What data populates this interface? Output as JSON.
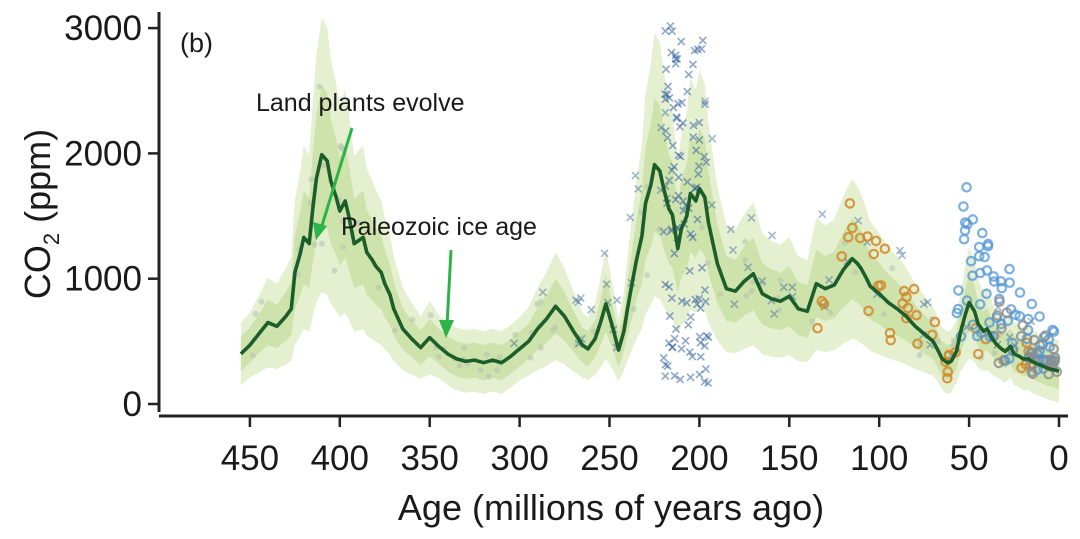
{
  "chart_data": {
    "type": "line",
    "panel_label": "(b)",
    "xlabel": "Age (millions of years ago)",
    "ylabel": "CO",
    "ylabel_subscript": "2",
    "ylabel_unit": "(ppm)",
    "xlim": [
      460,
      0
    ],
    "ylim": [
      0,
      3000
    ],
    "x_ticks": [
      450,
      400,
      350,
      300,
      250,
      200,
      150,
      100,
      50,
      0
    ],
    "y_ticks": [
      0,
      1000,
      2000,
      3000
    ],
    "colors": {
      "line": "#1b5e2a",
      "band_outer": "#dcebc2",
      "band_inner": "#c6de9e",
      "proxy_cross": "#2f5f9e",
      "proxy_orange": "#d08a2a",
      "proxy_blue": "#4f95d6",
      "proxy_gray": "#8c8c8c",
      "arrow": "#2db34a"
    },
    "series": [
      {
        "x": [
          455,
          450,
          445,
          440,
          435,
          430,
          427,
          425,
          422,
          420,
          417,
          415,
          413,
          410,
          407,
          405,
          402,
          400,
          397,
          395,
          392,
          390,
          387,
          385,
          382,
          380,
          377,
          375,
          372,
          370,
          365,
          360,
          355,
          350,
          345,
          340,
          335,
          330,
          325,
          320,
          315,
          310,
          305,
          300,
          295,
          290,
          285,
          280,
          275,
          270,
          265,
          262,
          258,
          255,
          252,
          248,
          245,
          242,
          240,
          238,
          235,
          232,
          230,
          227,
          225,
          222,
          220,
          217,
          215,
          212,
          210,
          207,
          205,
          202,
          200,
          197,
          195,
          192,
          190,
          187,
          185,
          180,
          175,
          170,
          165,
          160,
          155,
          150,
          145,
          140,
          135,
          130,
          125,
          120,
          115,
          112,
          110,
          107,
          105,
          100,
          95,
          90,
          85,
          80,
          75,
          70,
          67,
          65,
          62,
          60,
          57,
          55,
          52,
          50,
          47,
          45,
          42,
          40,
          37,
          35,
          32,
          30,
          27,
          25,
          22,
          20,
          17,
          15,
          12,
          10,
          7,
          5,
          2,
          0
        ],
        "y": [
          400,
          470,
          560,
          650,
          620,
          700,
          760,
          1050,
          1200,
          1330,
          1280,
          1560,
          1800,
          1990,
          1940,
          1780,
          1650,
          1540,
          1620,
          1500,
          1280,
          1300,
          1330,
          1210,
          1150,
          1100,
          1050,
          960,
          870,
          760,
          600,
          520,
          450,
          530,
          460,
          400,
          360,
          340,
          350,
          330,
          350,
          330,
          380,
          440,
          500,
          600,
          680,
          780,
          700,
          580,
          470,
          440,
          520,
          650,
          800,
          600,
          430,
          580,
          760,
          920,
          1150,
          1340,
          1600,
          1750,
          1910,
          1860,
          1730,
          1560,
          1510,
          1240,
          1400,
          1500,
          1680,
          1620,
          1720,
          1650,
          1450,
          1250,
          1120,
          1000,
          920,
          900,
          980,
          1040,
          880,
          840,
          820,
          860,
          760,
          740,
          960,
          920,
          950,
          1070,
          1160,
          1120,
          1080,
          1000,
          940,
          880,
          810,
          760,
          700,
          620,
          560,
          500,
          420,
          360,
          330,
          340,
          420,
          560,
          720,
          810,
          740,
          640,
          580,
          600,
          520,
          480,
          440,
          420,
          460,
          400,
          380,
          360,
          360,
          340,
          320,
          310,
          290,
          280,
          270,
          260
        ]
      }
    ],
    "annotations": [
      {
        "text": "Land plants evolve",
        "x": 385,
        "y": 1350
      },
      {
        "text": "Paleozoic ice age",
        "x": 320,
        "y": 480
      }
    ]
  }
}
